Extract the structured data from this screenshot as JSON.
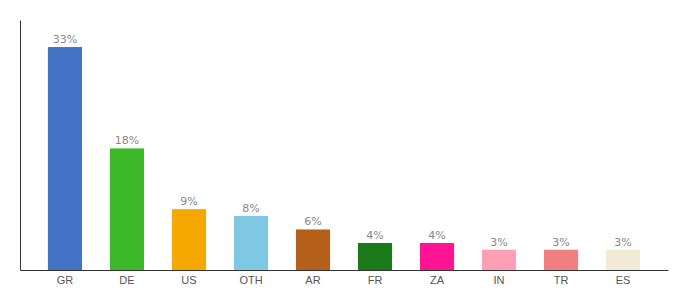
{
  "chart_data": {
    "type": "bar",
    "categories": [
      "GR",
      "DE",
      "US",
      "OTH",
      "AR",
      "FR",
      "ZA",
      "IN",
      "TR",
      "ES"
    ],
    "values": [
      33,
      18,
      9,
      8,
      6,
      4,
      4,
      3,
      3,
      3
    ],
    "value_labels": [
      "33%",
      "18%",
      "9%",
      "8%",
      "6%",
      "4%",
      "4%",
      "3%",
      "3%",
      "3%"
    ],
    "colors": [
      "#4472c4",
      "#3db828",
      "#f5a800",
      "#7ec8e3",
      "#b5601a",
      "#1a7a1a",
      "#ff1493",
      "#ff9eb5",
      "#f08080",
      "#f0ead6"
    ],
    "ylim": [
      0,
      37
    ],
    "yticks": [],
    "tick_labels": "x",
    "grid": false
  }
}
